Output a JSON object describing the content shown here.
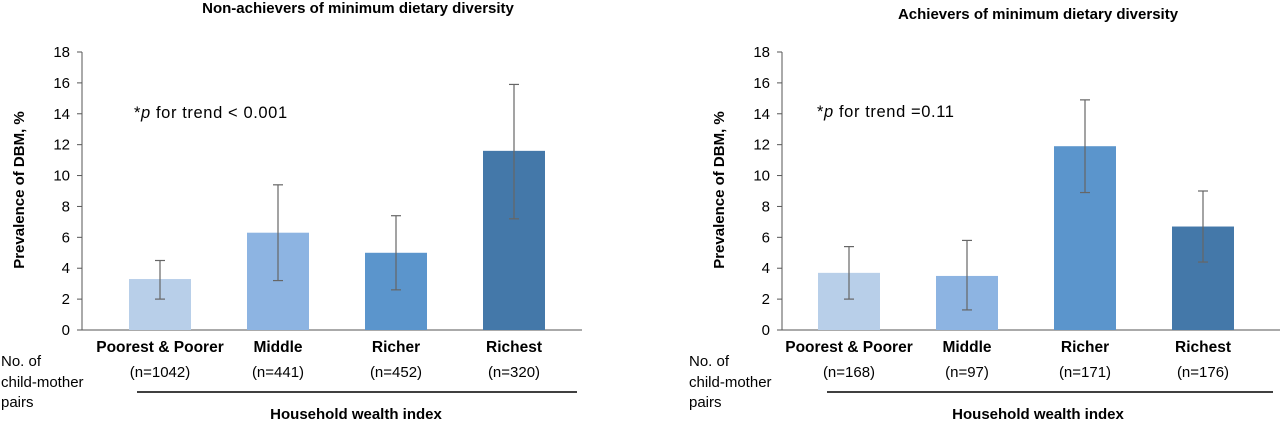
{
  "row_label": [
    "No. of",
    "child-mother",
    "pairs"
  ],
  "chart_data": [
    {
      "type": "bar",
      "title": "Non-achievers of minimum dietary diversity",
      "ylabel": "Prevalence of DBM, %",
      "xlabel": "Household wealth index",
      "ylim": [
        0,
        18
      ],
      "yticks": [
        "0",
        "2",
        "4",
        "6",
        "8",
        "10",
        "12",
        "14",
        "16",
        "18"
      ],
      "categories": [
        "Poorest & Poorer",
        "Middle",
        "Richer",
        "Richest"
      ],
      "counts": [
        "(n=1042)",
        "(n=441)",
        "(n=452)",
        "(n=320)"
      ],
      "values": [
        3.3,
        6.3,
        5.0,
        11.6
      ],
      "error_low": [
        2.0,
        3.2,
        2.6,
        7.2
      ],
      "error_high": [
        4.5,
        9.4,
        7.4,
        15.9
      ],
      "annotation": {
        "prefix": "*",
        "italic": "p",
        "text": " for trend < 0.001"
      },
      "colors": [
        "#b8cfe9",
        "#8db4e2",
        "#5b95cc",
        "#4478a9"
      ],
      "grid": false,
      "legend": "none"
    },
    {
      "type": "bar",
      "title": "Achievers of minimum dietary diversity",
      "ylabel": "Prevalence of DBM, %",
      "xlabel": "Household wealth index",
      "ylim": [
        0,
        18
      ],
      "yticks": [
        "0",
        "2",
        "4",
        "6",
        "8",
        "10",
        "12",
        "14",
        "16",
        "18"
      ],
      "categories": [
        "Poorest & Poorer",
        "Middle",
        "Richer",
        "Richest"
      ],
      "counts": [
        "(n=168)",
        "(n=97)",
        "(n=171)",
        "(n=176)"
      ],
      "values": [
        3.7,
        3.5,
        11.9,
        6.7
      ],
      "error_low": [
        2.0,
        1.3,
        8.9,
        4.4
      ],
      "error_high": [
        5.4,
        5.8,
        14.9,
        9.0
      ],
      "annotation": {
        "prefix": "*",
        "italic": "p",
        "text": " for trend =0.11"
      },
      "colors": [
        "#b8cfe9",
        "#8db4e2",
        "#5b95cc",
        "#4478a9"
      ],
      "grid": false,
      "legend": "none"
    }
  ]
}
